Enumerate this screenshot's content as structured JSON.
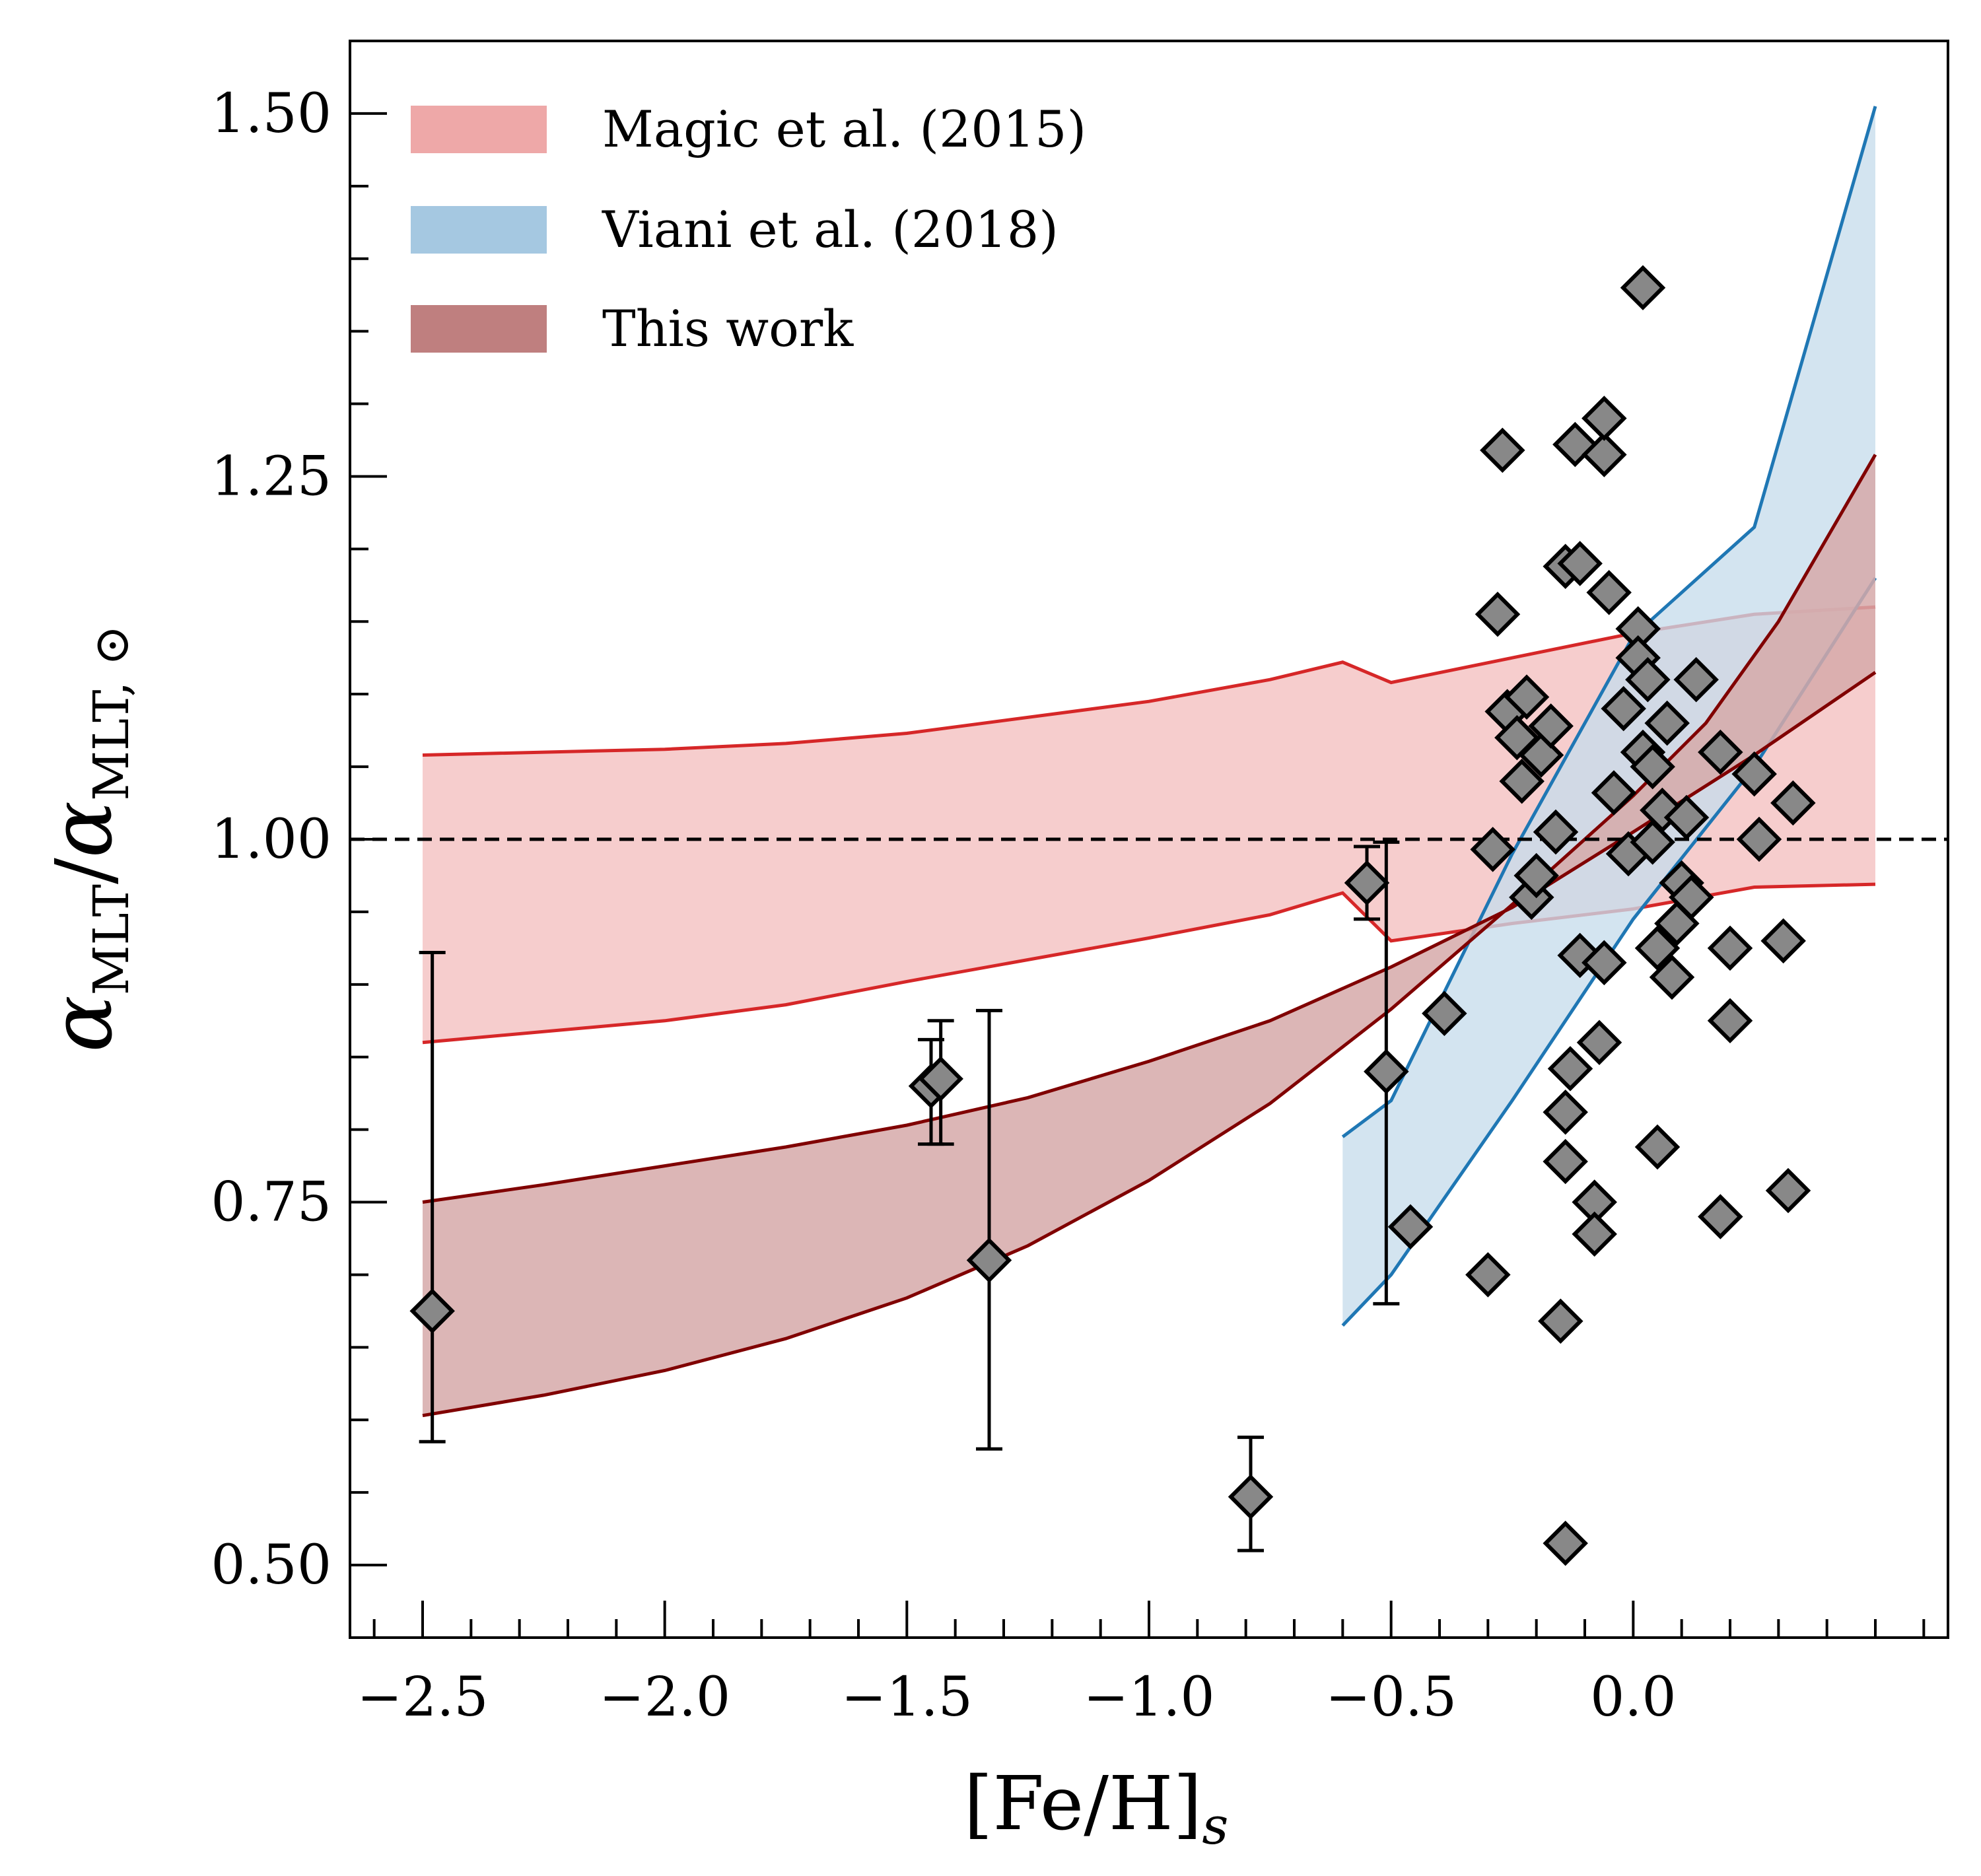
{
  "chart_data": {
    "type": "scatter",
    "xlabel": {
      "main": "[Fe/H]",
      "sub": "s"
    },
    "ylabel": {
      "alpha1": "α",
      "sub1": "MLT",
      "slash": "/",
      "alpha2": "α",
      "sub2": "MLT, ⊙"
    },
    "xlim": [
      -2.65,
      0.65
    ],
    "ylim": [
      0.45,
      1.55
    ],
    "x_major_ticks": [
      -2.5,
      -2.0,
      -1.5,
      -1.0,
      -0.5,
      0.0
    ],
    "x_tick_labels": [
      "−2.5",
      "−2.0",
      "−1.5",
      "−1.0",
      "−0.5",
      "0.0"
    ],
    "x_minor_step": 0.1,
    "y_major_ticks": [
      0.5,
      0.75,
      1.0,
      1.25,
      1.5
    ],
    "y_tick_labels": [
      "0.50",
      "0.75",
      "1.00",
      "1.25",
      "1.50"
    ],
    "y_minor_step": 0.05,
    "reference_line": {
      "y": 1.0,
      "style": "dashed",
      "color": "#000000"
    },
    "legend": {
      "position": "top-left"
    },
    "bands": [
      {
        "name": "Magic et al. (2015)",
        "fill": "#f5c4c4",
        "legend_color": "#eea8a8",
        "stroke": "#d62728",
        "upper": [
          [
            -2.5,
            1.058
          ],
          [
            -2.0,
            1.062
          ],
          [
            -1.75,
            1.066
          ],
          [
            -1.5,
            1.073
          ],
          [
            -1.0,
            1.095
          ],
          [
            -0.75,
            1.11
          ],
          [
            -0.6,
            1.122
          ],
          [
            -0.5,
            1.108
          ],
          [
            -0.25,
            1.125
          ],
          [
            0.0,
            1.142
          ],
          [
            0.25,
            1.155
          ],
          [
            0.5,
            1.16
          ]
        ],
        "lower": [
          [
            -2.5,
            0.86
          ],
          [
            -2.0,
            0.875
          ],
          [
            -1.75,
            0.886
          ],
          [
            -1.5,
            0.902
          ],
          [
            -1.0,
            0.932
          ],
          [
            -0.75,
            0.948
          ],
          [
            -0.6,
            0.963
          ],
          [
            -0.5,
            0.93
          ],
          [
            -0.25,
            0.942
          ],
          [
            0.0,
            0.952
          ],
          [
            0.25,
            0.967
          ],
          [
            0.5,
            0.969
          ]
        ]
      },
      {
        "name": "Viani et al. (2018)",
        "fill": "#c6dcec",
        "legend_color": "#a5c8e1",
        "stroke": "#1f77b4",
        "upper": [
          [
            -0.6,
            0.795
          ],
          [
            -0.5,
            0.82
          ],
          [
            -0.25,
            0.99
          ],
          [
            0.0,
            1.14
          ],
          [
            0.25,
            1.215
          ],
          [
            0.5,
            1.505
          ]
        ],
        "lower": [
          [
            -0.6,
            0.665
          ],
          [
            -0.5,
            0.7
          ],
          [
            -0.25,
            0.82
          ],
          [
            0.0,
            0.945
          ],
          [
            0.25,
            1.05
          ],
          [
            0.5,
            1.18
          ]
        ]
      },
      {
        "name": "This work",
        "fill": "#d6a9a9",
        "legend_color": "#bf7f7f",
        "stroke": "#800000",
        "upper": [
          [
            -2.5,
            0.75
          ],
          [
            -2.25,
            0.762
          ],
          [
            -2.0,
            0.775
          ],
          [
            -1.75,
            0.788
          ],
          [
            -1.5,
            0.803
          ],
          [
            -1.25,
            0.822
          ],
          [
            -1.0,
            0.847
          ],
          [
            -0.75,
            0.875
          ],
          [
            -0.5,
            0.912
          ],
          [
            -0.25,
            0.953
          ],
          [
            0.0,
            1.005
          ],
          [
            0.25,
            1.058
          ],
          [
            0.5,
            1.115
          ]
        ],
        "lower": [
          [
            -2.5,
            0.603
          ],
          [
            -2.25,
            0.617
          ],
          [
            -2.0,
            0.634
          ],
          [
            -1.75,
            0.656
          ],
          [
            -1.5,
            0.684
          ],
          [
            -1.25,
            0.72
          ],
          [
            -1.0,
            0.765
          ],
          [
            -0.75,
            0.818
          ],
          [
            -0.5,
            0.883
          ],
          [
            -0.25,
            0.955
          ],
          [
            0.0,
            1.03
          ],
          [
            0.15,
            1.08
          ],
          [
            0.3,
            1.15
          ],
          [
            0.5,
            1.265
          ]
        ]
      }
    ],
    "errorbar_points": [
      {
        "x": -2.48,
        "y": 0.675,
        "ylo": 0.585,
        "yhi": 0.922
      },
      {
        "x": -1.45,
        "y": 0.83,
        "ylo": 0.79,
        "yhi": 0.862
      },
      {
        "x": -1.43,
        "y": 0.835,
        "ylo": 0.79,
        "yhi": 0.875
      },
      {
        "x": -1.33,
        "y": 0.71,
        "ylo": 0.58,
        "yhi": 0.882
      },
      {
        "x": -0.79,
        "y": 0.547,
        "ylo": 0.51,
        "yhi": 0.588
      },
      {
        "x": -0.55,
        "y": 0.97,
        "ylo": 0.945,
        "yhi": 0.995
      },
      {
        "x": -0.51,
        "y": 0.84,
        "ylo": 0.68,
        "yhi": 0.998
      }
    ],
    "points": [
      [
        -0.46,
        0.733
      ],
      [
        -0.39,
        0.88
      ],
      [
        -0.3,
        0.7
      ],
      [
        -0.29,
        0.993
      ],
      [
        -0.28,
        1.155
      ],
      [
        -0.27,
        1.268
      ],
      [
        -0.26,
        1.088
      ],
      [
        -0.24,
        1.07
      ],
      [
        -0.23,
        1.04
      ],
      [
        -0.22,
        1.098
      ],
      [
        -0.21,
        0.96
      ],
      [
        -0.2,
        0.975
      ],
      [
        -0.19,
        1.058
      ],
      [
        -0.17,
        1.078
      ],
      [
        -0.16,
        1.005
      ],
      [
        -0.15,
        0.668
      ],
      [
        -0.14,
        0.515
      ],
      [
        -0.14,
        0.778
      ],
      [
        -0.14,
        0.812
      ],
      [
        -0.13,
        0.842
      ],
      [
        -0.14,
        1.188
      ],
      [
        -0.12,
        1.272
      ],
      [
        -0.11,
        0.92
      ],
      [
        -0.11,
        1.19
      ],
      [
        -0.08,
        0.75
      ],
      [
        -0.08,
        0.728
      ],
      [
        -0.07,
        0.86
      ],
      [
        -0.06,
        0.915
      ],
      [
        -0.06,
        1.265
      ],
      [
        -0.06,
        1.29
      ],
      [
        -0.05,
        1.17
      ],
      [
        -0.04,
        1.032
      ],
      [
        -0.02,
        1.09
      ],
      [
        -0.01,
        0.99
      ],
      [
        0.01,
        1.145
      ],
      [
        0.01,
        1.125
      ],
      [
        0.02,
        1.06
      ],
      [
        0.02,
        1.38
      ],
      [
        0.03,
        1.11
      ],
      [
        0.04,
        0.998
      ],
      [
        0.04,
        1.05
      ],
      [
        0.05,
        0.788
      ],
      [
        0.05,
        0.925
      ],
      [
        0.06,
        1.02
      ],
      [
        0.07,
        1.08
      ],
      [
        0.08,
        0.905
      ],
      [
        0.09,
        0.942
      ],
      [
        0.1,
        0.97
      ],
      [
        0.11,
        1.015
      ],
      [
        0.12,
        0.96
      ],
      [
        0.13,
        1.11
      ],
      [
        0.18,
        0.74
      ],
      [
        0.18,
        1.06
      ],
      [
        0.2,
        0.875
      ],
      [
        0.2,
        0.925
      ],
      [
        0.25,
        1.045
      ],
      [
        0.26,
        1.0
      ],
      [
        0.31,
        0.93
      ],
      [
        0.32,
        0.758
      ],
      [
        0.33,
        1.025
      ]
    ],
    "marker": {
      "shape": "diamond",
      "fill": "#888888",
      "stroke": "#000000"
    }
  }
}
